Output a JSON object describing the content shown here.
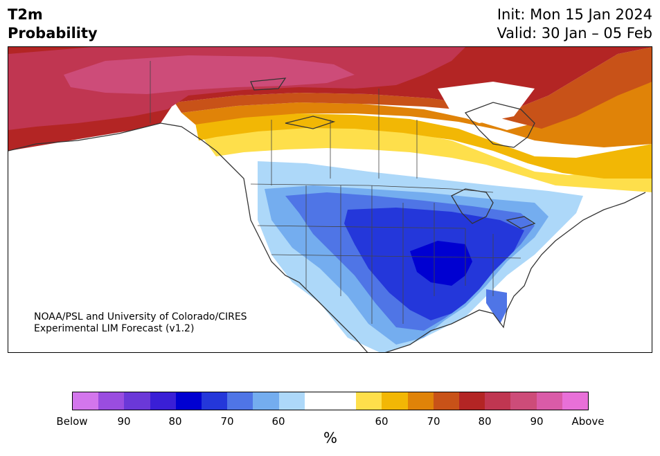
{
  "title": {
    "line1": "T2m",
    "line2": "Probability"
  },
  "dates": {
    "init": "Init: Mon 15 Jan 2024",
    "valid": "Valid: 30 Jan – 05 Feb"
  },
  "credit": {
    "line1": "NOAA/PSL and University of Colorado/CIRES",
    "line2": "Experimental LIM Forecast (v1.2)"
  },
  "map": {
    "colors": {
      "below_50": "#add8f9",
      "below_60": "#74adef",
      "below_70": "#4f75e6",
      "below_80": "#2437da",
      "below_90": "#0000d1",
      "above_50": "#fedf4b",
      "above_60": "#f2b705",
      "above_70": "#e08308",
      "above_80": "#c85218",
      "above_90": "#b32524",
      "above_95": "#c03651",
      "above_max": "#cd4c79",
      "land_outline": "#333333"
    }
  },
  "colorbar": {
    "colors": [
      "#d376ec",
      "#9a4de0",
      "#6b38d8",
      "#3a1fd6",
      "#0000d1",
      "#2437da",
      "#4f75e6",
      "#74adef",
      "#add8f9",
      "#ffffff",
      "#ffffff",
      "#fedf4b",
      "#f2b705",
      "#e08308",
      "#c85218",
      "#b32524",
      "#c03651",
      "#cd4c79",
      "#da5ba8",
      "#e870d8"
    ],
    "tick_labels": [
      "Below",
      "90",
      "80",
      "70",
      "60",
      "60",
      "70",
      "80",
      "90",
      "Above"
    ],
    "unit": "%"
  }
}
